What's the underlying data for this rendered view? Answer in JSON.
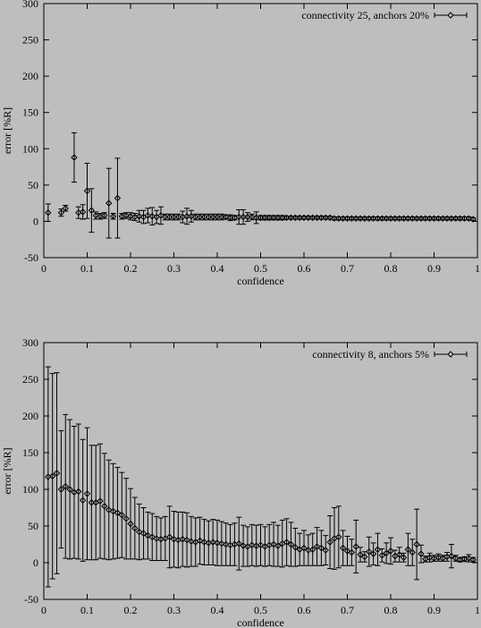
{
  "chart_data": [
    {
      "type": "scatter",
      "title": "",
      "xlabel": "confidence",
      "ylabel": "error [%R]",
      "xlim": [
        0,
        1
      ],
      "ylim": [
        -50,
        300
      ],
      "xticks": [
        "0",
        "0.1",
        "0.2",
        "0.3",
        "0.4",
        "0.5",
        "0.6",
        "0.7",
        "0.8",
        "0.9",
        "1"
      ],
      "yticks": [
        "-50",
        "0",
        "50",
        "100",
        "150",
        "200",
        "250",
        "300"
      ],
      "grid": false,
      "legend_position": "top-right",
      "marker": "diamond",
      "series": [
        {
          "name": "connectivity 25, anchors 20%",
          "x": [
            0.01,
            0.04,
            0.05,
            0.07,
            0.08,
            0.09,
            0.1,
            0.11,
            0.12,
            0.13,
            0.14,
            0.15,
            0.16,
            0.17,
            0.18,
            0.19,
            0.2,
            0.21,
            0.22,
            0.23,
            0.24,
            0.25,
            0.26,
            0.27,
            0.28,
            0.29,
            0.3,
            0.31,
            0.32,
            0.33,
            0.34,
            0.35,
            0.36,
            0.37,
            0.38,
            0.39,
            0.4,
            0.41,
            0.42,
            0.43,
            0.44,
            0.45,
            0.46,
            0.47,
            0.48,
            0.49,
            0.5,
            0.51,
            0.52,
            0.53,
            0.54,
            0.55,
            0.56,
            0.57,
            0.58,
            0.59,
            0.6,
            0.61,
            0.62,
            0.63,
            0.64,
            0.65,
            0.66,
            0.67,
            0.68,
            0.69,
            0.7,
            0.71,
            0.72,
            0.73,
            0.74,
            0.75,
            0.76,
            0.77,
            0.78,
            0.79,
            0.8,
            0.81,
            0.82,
            0.83,
            0.84,
            0.85,
            0.86,
            0.87,
            0.88,
            0.89,
            0.9,
            0.91,
            0.92,
            0.93,
            0.94,
            0.95,
            0.96,
            0.97,
            0.98,
            0.99
          ],
          "y": [
            12,
            12,
            18,
            88,
            12,
            13,
            42,
            15,
            8,
            7,
            8,
            25,
            7,
            32,
            7,
            8,
            7,
            6,
            7,
            6,
            8,
            7,
            6,
            8,
            6,
            6,
            6,
            6,
            6,
            7,
            7,
            6,
            6,
            6,
            6,
            6,
            6,
            6,
            6,
            5,
            5,
            6,
            6,
            6,
            6,
            5,
            5,
            5,
            5,
            5,
            5,
            5,
            5,
            5,
            5,
            5,
            5,
            5,
            5,
            5,
            5,
            5,
            5,
            4,
            4,
            4,
            4,
            4,
            4,
            4,
            4,
            4,
            4,
            4,
            4,
            4,
            4,
            4,
            4,
            4,
            4,
            4,
            4,
            4,
            4,
            4,
            4,
            4,
            4,
            4,
            4,
            4,
            4,
            4,
            4,
            3
          ],
          "err": [
            12,
            5,
            4,
            34,
            8,
            10,
            38,
            30,
            5,
            4,
            4,
            48,
            4,
            55,
            4,
            4,
            5,
            5,
            8,
            9,
            10,
            12,
            9,
            12,
            4,
            4,
            4,
            4,
            8,
            11,
            8,
            4,
            4,
            4,
            4,
            4,
            4,
            4,
            3,
            4,
            3,
            10,
            10,
            6,
            4,
            8,
            3,
            3,
            3,
            3,
            3,
            3,
            2,
            2,
            2,
            2,
            2,
            2,
            2,
            2,
            2,
            2,
            2,
            2,
            2,
            2,
            2,
            2,
            2,
            2,
            2,
            2,
            2,
            2,
            2,
            2,
            2,
            2,
            2,
            2,
            2,
            2,
            2,
            2,
            2,
            2,
            2,
            2,
            2,
            2,
            2,
            2,
            2,
            2,
            2,
            2
          ]
        }
      ]
    },
    {
      "type": "scatter",
      "title": "",
      "xlabel": "confidence",
      "ylabel": "error [%R]",
      "xlim": [
        0,
        1
      ],
      "ylim": [
        -50,
        300
      ],
      "xticks": [
        "0",
        "0.1",
        "0.2",
        "0.3",
        "0.4",
        "0.5",
        "0.6",
        "0.7",
        "0.8",
        "0.9",
        "1"
      ],
      "yticks": [
        "-50",
        "0",
        "50",
        "100",
        "150",
        "200",
        "250",
        "300"
      ],
      "grid": false,
      "legend_position": "top-right",
      "marker": "diamond",
      "series": [
        {
          "name": "connectivity 8, anchors 5%",
          "x": [
            0.01,
            0.02,
            0.03,
            0.04,
            0.05,
            0.06,
            0.07,
            0.08,
            0.09,
            0.1,
            0.11,
            0.12,
            0.13,
            0.14,
            0.15,
            0.16,
            0.17,
            0.18,
            0.19,
            0.2,
            0.21,
            0.22,
            0.23,
            0.24,
            0.25,
            0.26,
            0.27,
            0.28,
            0.29,
            0.3,
            0.31,
            0.32,
            0.33,
            0.34,
            0.35,
            0.36,
            0.37,
            0.38,
            0.39,
            0.4,
            0.41,
            0.42,
            0.43,
            0.44,
            0.45,
            0.46,
            0.47,
            0.48,
            0.49,
            0.5,
            0.51,
            0.52,
            0.53,
            0.54,
            0.55,
            0.56,
            0.57,
            0.58,
            0.59,
            0.6,
            0.61,
            0.62,
            0.63,
            0.64,
            0.65,
            0.66,
            0.67,
            0.68,
            0.69,
            0.7,
            0.71,
            0.72,
            0.73,
            0.74,
            0.75,
            0.76,
            0.77,
            0.78,
            0.79,
            0.8,
            0.81,
            0.82,
            0.83,
            0.84,
            0.85,
            0.86,
            0.87,
            0.88,
            0.89,
            0.9,
            0.91,
            0.92,
            0.93,
            0.94,
            0.95,
            0.96,
            0.97,
            0.98,
            0.99
          ],
          "y": [
            117,
            118,
            122,
            100,
            104,
            100,
            96,
            97,
            85,
            94,
            82,
            82,
            84,
            77,
            72,
            70,
            68,
            65,
            60,
            53,
            47,
            42,
            40,
            37,
            35,
            33,
            32,
            33,
            35,
            32,
            31,
            32,
            31,
            29,
            28,
            30,
            28,
            27,
            28,
            27,
            26,
            25,
            24,
            25,
            26,
            23,
            22,
            24,
            23,
            24,
            22,
            24,
            25,
            23,
            26,
            28,
            25,
            21,
            18,
            20,
            17,
            18,
            22,
            20,
            17,
            28,
            33,
            35,
            20,
            16,
            14,
            22,
            11,
            8,
            15,
            12,
            18,
            10,
            13,
            16,
            9,
            11,
            7,
            18,
            14,
            25,
            12,
            5,
            7,
            6,
            7,
            6,
            8,
            9,
            6,
            4,
            5,
            6,
            4
          ],
          "err": [
            150,
            140,
            137,
            80,
            98,
            95,
            90,
            92,
            83,
            90,
            78,
            78,
            78,
            72,
            68,
            65,
            62,
            58,
            55,
            48,
            42,
            38,
            35,
            32,
            32,
            30,
            29,
            30,
            42,
            38,
            38,
            37,
            37,
            34,
            33,
            32,
            31,
            30,
            31,
            31,
            30,
            29,
            28,
            29,
            36,
            28,
            27,
            28,
            28,
            28,
            27,
            28,
            30,
            28,
            32,
            32,
            30,
            26,
            22,
            24,
            21,
            22,
            26,
            24,
            20,
            36,
            42,
            42,
            24,
            20,
            18,
            36,
            10,
            7,
            20,
            15,
            22,
            9,
            14,
            18,
            8,
            10,
            6,
            22,
            18,
            48,
            12,
            4,
            6,
            4,
            5,
            4,
            6,
            16,
            4,
            3,
            3,
            5,
            3
          ]
        }
      ]
    }
  ]
}
